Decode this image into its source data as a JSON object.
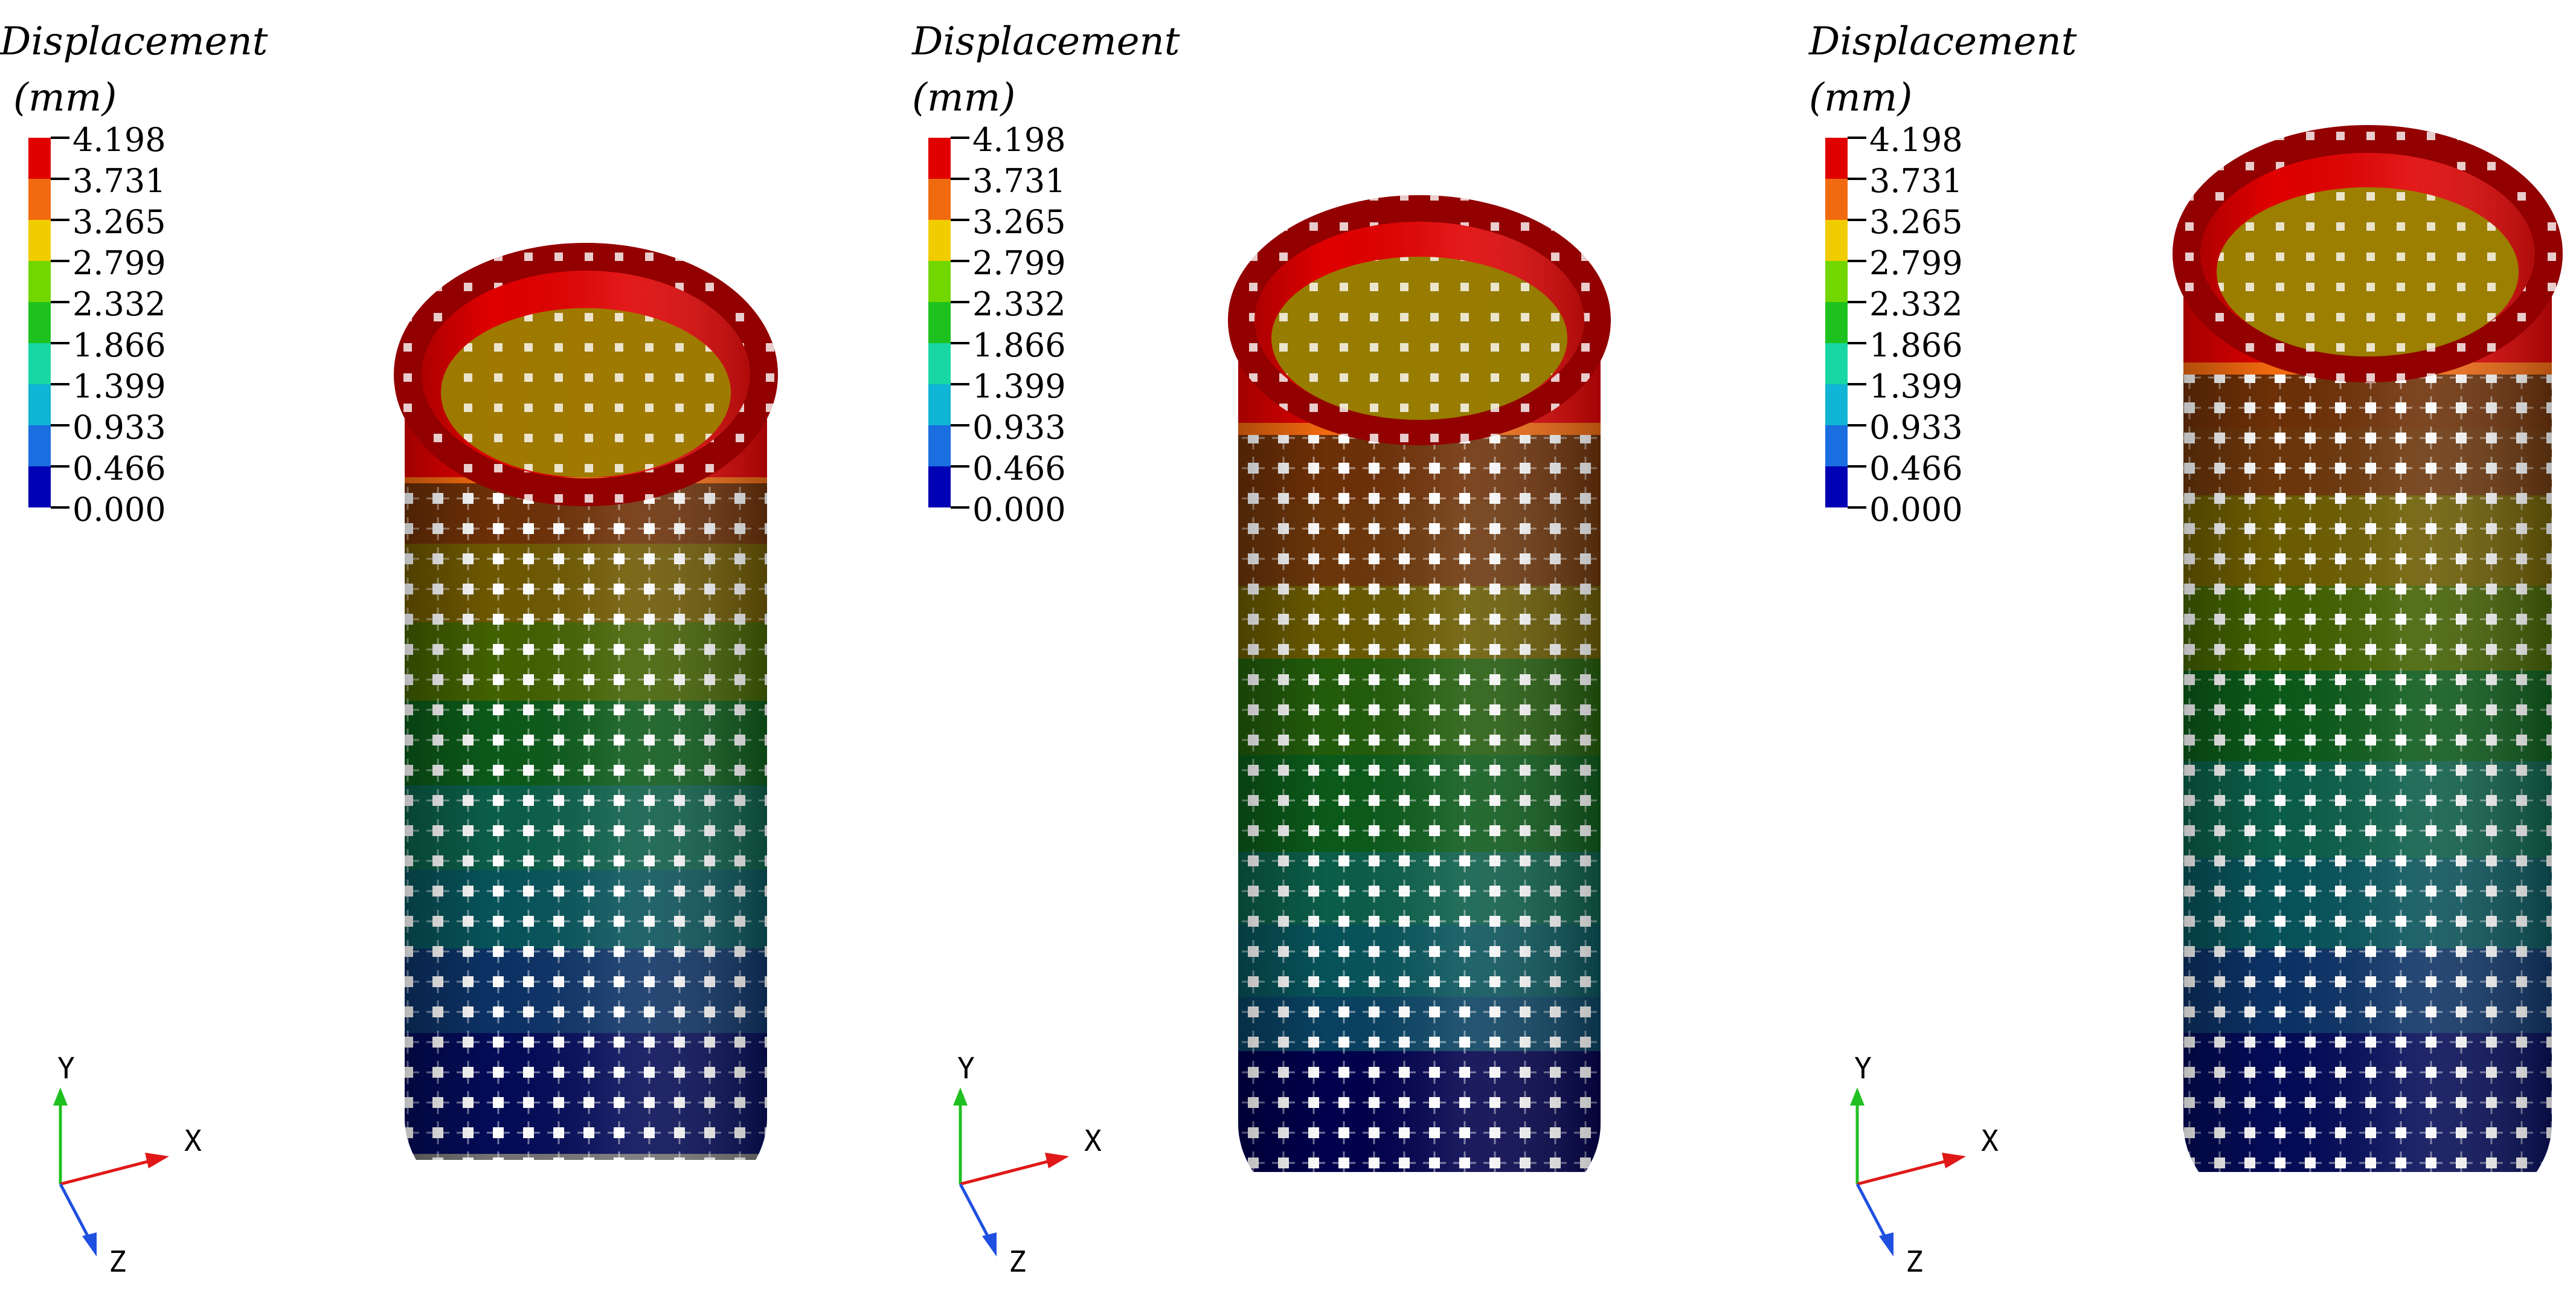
{
  "figure": {
    "panel_count": 3
  },
  "legend": {
    "title_line1": "Displacement",
    "title_line2": "(mm)",
    "levels": [
      "4.198",
      "3.731",
      "3.265",
      "2.799",
      "2.332",
      "1.866",
      "1.399",
      "0.933",
      "0.466",
      "0.000"
    ],
    "band_colors": [
      "#e10000",
      "#f26a10",
      "#f0cc00",
      "#72d600",
      "#1ec21e",
      "#18d7a4",
      "#10b4d4",
      "#1a6ee0",
      "#0000b4"
    ]
  },
  "axes": {
    "y_label": "Y",
    "x_label": "X",
    "z_label": "Z",
    "y_color": "#20c020",
    "x_color": "#e01818",
    "z_color": "#2050e0"
  },
  "panels": [
    {
      "name": "left"
    },
    {
      "name": "middle"
    },
    {
      "name": "right"
    }
  ],
  "style": {
    "lattice_bands_top_to_bottom": [
      "#e00000",
      "#f26a10",
      "#f07818",
      "#f4c400",
      "#e8c800",
      "#92d800",
      "#4ccc18",
      "#18c838",
      "#18d0a0",
      "#10b8c8",
      "#1490d8",
      "#1a6ee0",
      "#0818c0",
      "#0000a8"
    ],
    "inner_colors": [
      "#f4c400",
      "#e8c800",
      "#f0cc00"
    ],
    "ring_color": "#e00000"
  }
}
